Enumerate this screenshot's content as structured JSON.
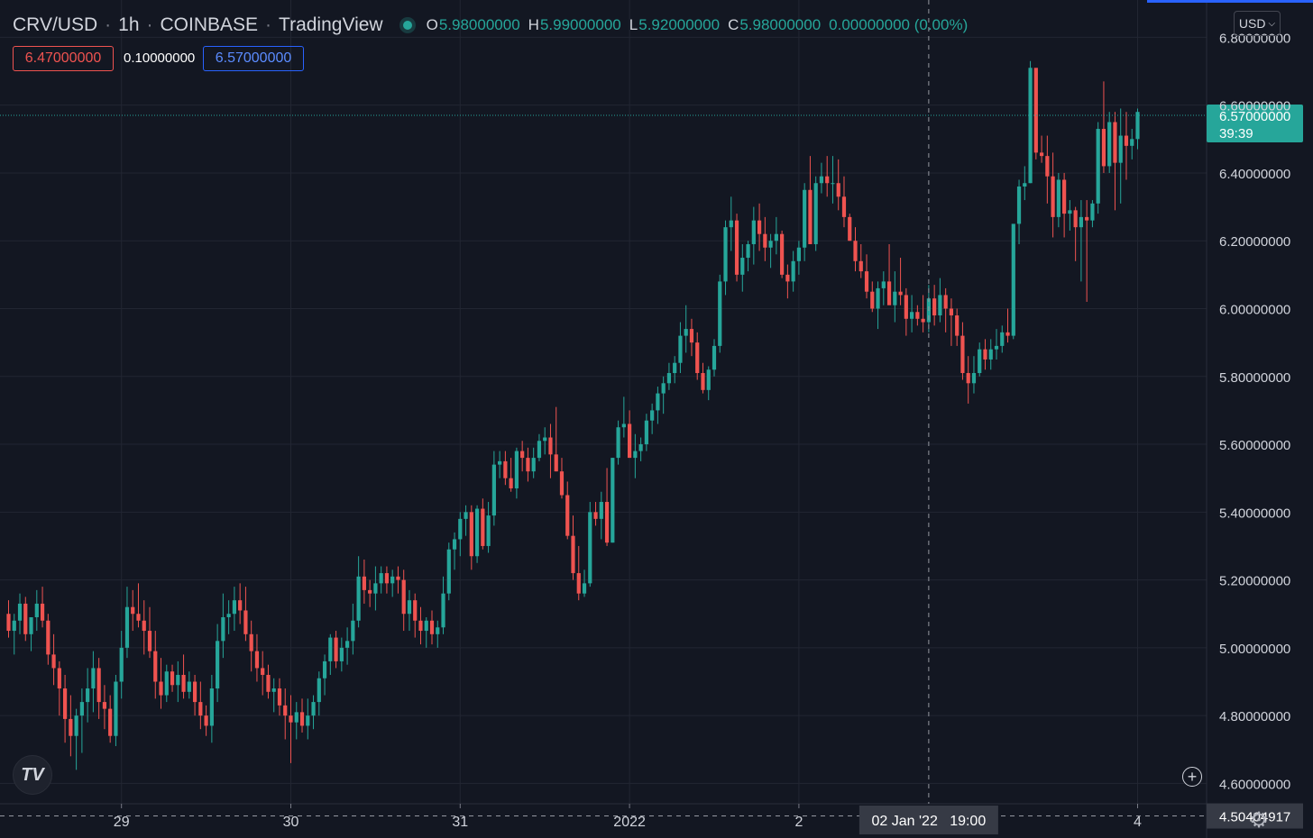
{
  "header": {
    "symbol": "CRV/USD",
    "interval": "1h",
    "exchange": "COINBASE",
    "platform": "TradingView",
    "separator": "·",
    "ohlc": {
      "open_key": "O",
      "open": "5.98000000",
      "high_key": "H",
      "high": "5.99000000",
      "low_key": "L",
      "low": "5.92000000",
      "close_key": "C",
      "close": "5.98000000",
      "change": "0.00000000 (0.00%)"
    }
  },
  "trade_boxes": {
    "sell": "6.47000000",
    "spread": "0.10000000",
    "buy": "6.57000000"
  },
  "currency_button": {
    "label": "USD",
    "icon": "chevron-down-icon"
  },
  "colors": {
    "background": "#131722",
    "up": "#26a69a",
    "down": "#ef5350",
    "grid": "#222632",
    "text": "#d1d4dc",
    "buy_border": "#2962ff",
    "sell_border": "#ef5350"
  },
  "crosshair": {
    "price_label": "4.50404917",
    "time_label": "02 Jan '22   19:00"
  },
  "last_price": {
    "price": "6.57000000",
    "countdown": "39:39"
  },
  "chart_data": {
    "type": "candlestick",
    "timeframe": "1h",
    "y_axis": {
      "range": [
        4.54,
        6.91
      ],
      "ticks": [
        "6.80000000",
        "6.60000000",
        "6.40000000",
        "6.20000000",
        "6.00000000",
        "5.80000000",
        "5.60000000",
        "5.40000000",
        "5.20000000",
        "5.00000000",
        "4.80000000",
        "4.60000000"
      ],
      "tick_values": [
        6.8,
        6.6,
        6.4,
        6.2,
        6.0,
        5.8,
        5.6,
        5.4,
        5.2,
        5.0,
        4.8,
        4.6
      ]
    },
    "x_axis": {
      "ticks": [
        "29",
        "30",
        "31",
        "2022",
        "2",
        "4"
      ],
      "tick_candle_index": [
        20,
        50,
        80,
        110,
        140,
        200
      ]
    },
    "grid": true,
    "crosshair_candle_index": 163,
    "crosshair_price": 4.50404917,
    "last_price": 6.57,
    "candles": [
      [
        5.1,
        5.14,
        5.03,
        5.05
      ],
      [
        5.05,
        5.1,
        4.98,
        5.08
      ],
      [
        5.08,
        5.16,
        5.04,
        5.13
      ],
      [
        5.13,
        5.15,
        5.02,
        5.04
      ],
      [
        5.04,
        5.09,
        4.99,
        5.09
      ],
      [
        5.09,
        5.17,
        5.05,
        5.13
      ],
      [
        5.13,
        5.18,
        5.06,
        5.08
      ],
      [
        5.08,
        5.1,
        4.95,
        4.98
      ],
      [
        4.98,
        5.04,
        4.89,
        4.94
      ],
      [
        4.94,
        4.96,
        4.8,
        4.88
      ],
      [
        4.88,
        4.92,
        4.72,
        4.79
      ],
      [
        4.79,
        4.86,
        4.68,
        4.74
      ],
      [
        4.74,
        4.82,
        4.64,
        4.8
      ],
      [
        4.8,
        4.88,
        4.69,
        4.84
      ],
      [
        4.84,
        4.94,
        4.78,
        4.88
      ],
      [
        4.88,
        4.99,
        4.81,
        4.94
      ],
      [
        4.94,
        4.97,
        4.79,
        4.84
      ],
      [
        4.84,
        4.89,
        4.76,
        4.82
      ],
      [
        4.82,
        4.86,
        4.72,
        4.74
      ],
      [
        4.74,
        4.92,
        4.71,
        4.9
      ],
      [
        4.9,
        5.05,
        4.85,
        5.0
      ],
      [
        5.0,
        5.18,
        4.97,
        5.12
      ],
      [
        5.12,
        5.17,
        5.05,
        5.1
      ],
      [
        5.1,
        5.19,
        5.06,
        5.08
      ],
      [
        5.08,
        5.14,
        4.98,
        5.05
      ],
      [
        5.05,
        5.12,
        4.97,
        4.99
      ],
      [
        4.99,
        5.05,
        4.85,
        4.9
      ],
      [
        4.9,
        4.97,
        4.82,
        4.86
      ],
      [
        4.86,
        4.95,
        4.84,
        4.93
      ],
      [
        4.93,
        4.95,
        4.87,
        4.89
      ],
      [
        4.89,
        4.96,
        4.84,
        4.92
      ],
      [
        4.92,
        4.98,
        4.85,
        4.87
      ],
      [
        4.87,
        4.93,
        4.85,
        4.9
      ],
      [
        4.9,
        4.92,
        4.8,
        4.84
      ],
      [
        4.84,
        4.9,
        4.76,
        4.8
      ],
      [
        4.8,
        4.83,
        4.74,
        4.77
      ],
      [
        4.77,
        4.92,
        4.72,
        4.88
      ],
      [
        4.88,
        5.07,
        4.84,
        5.02
      ],
      [
        5.02,
        5.16,
        4.97,
        5.09
      ],
      [
        5.09,
        5.14,
        5.04,
        5.1
      ],
      [
        5.1,
        5.18,
        5.05,
        5.14
      ],
      [
        5.14,
        5.19,
        5.07,
        5.11
      ],
      [
        5.11,
        5.18,
        5.02,
        5.04
      ],
      [
        5.04,
        5.08,
        4.93,
        4.99
      ],
      [
        4.99,
        5.04,
        4.9,
        4.94
      ],
      [
        4.94,
        4.99,
        4.86,
        4.92
      ],
      [
        4.92,
        4.95,
        4.85,
        4.87
      ],
      [
        4.87,
        4.91,
        4.81,
        4.88
      ],
      [
        4.88,
        4.91,
        4.8,
        4.83
      ],
      [
        4.83,
        4.88,
        4.73,
        4.8
      ],
      [
        4.8,
        4.86,
        4.66,
        4.78
      ],
      [
        4.78,
        4.84,
        4.73,
        4.81
      ],
      [
        4.81,
        4.85,
        4.75,
        4.77
      ],
      [
        4.77,
        4.85,
        4.73,
        4.8
      ],
      [
        4.8,
        4.86,
        4.76,
        4.84
      ],
      [
        4.84,
        4.93,
        4.8,
        4.91
      ],
      [
        4.91,
        4.98,
        4.86,
        4.96
      ],
      [
        4.96,
        5.04,
        4.92,
        5.03
      ],
      [
        5.03,
        5.05,
        4.94,
        4.96
      ],
      [
        4.96,
        5.03,
        4.93,
        5.0
      ],
      [
        5.0,
        5.06,
        4.95,
        5.02
      ],
      [
        5.02,
        5.13,
        4.98,
        5.08
      ],
      [
        5.08,
        5.27,
        5.06,
        5.21
      ],
      [
        5.21,
        5.26,
        5.13,
        5.17
      ],
      [
        5.17,
        5.2,
        5.12,
        5.16
      ],
      [
        5.16,
        5.24,
        5.11,
        5.19
      ],
      [
        5.19,
        5.24,
        5.16,
        5.22
      ],
      [
        5.22,
        5.24,
        5.16,
        5.19
      ],
      [
        5.19,
        5.23,
        5.15,
        5.21
      ],
      [
        5.21,
        5.24,
        5.16,
        5.2
      ],
      [
        5.2,
        5.23,
        5.05,
        5.1
      ],
      [
        5.1,
        5.17,
        5.05,
        5.14
      ],
      [
        5.14,
        5.16,
        5.03,
        5.08
      ],
      [
        5.08,
        5.12,
        5.01,
        5.05
      ],
      [
        5.05,
        5.09,
        5.0,
        5.08
      ],
      [
        5.08,
        5.11,
        5.01,
        5.04
      ],
      [
        5.04,
        5.08,
        5.0,
        5.06
      ],
      [
        5.06,
        5.21,
        5.04,
        5.16
      ],
      [
        5.16,
        5.31,
        5.14,
        5.29
      ],
      [
        5.29,
        5.34,
        5.23,
        5.32
      ],
      [
        5.32,
        5.4,
        5.27,
        5.38
      ],
      [
        5.38,
        5.42,
        5.33,
        5.4
      ],
      [
        5.4,
        5.42,
        5.23,
        5.27
      ],
      [
        5.27,
        5.42,
        5.25,
        5.41
      ],
      [
        5.41,
        5.44,
        5.29,
        5.3
      ],
      [
        5.3,
        5.43,
        5.28,
        5.39
      ],
      [
        5.39,
        5.58,
        5.36,
        5.54
      ],
      [
        5.54,
        5.58,
        5.5,
        5.55
      ],
      [
        5.55,
        5.58,
        5.48,
        5.5
      ],
      [
        5.5,
        5.56,
        5.46,
        5.47
      ],
      [
        5.47,
        5.59,
        5.44,
        5.58
      ],
      [
        5.58,
        5.61,
        5.52,
        5.56
      ],
      [
        5.56,
        5.59,
        5.49,
        5.52
      ],
      [
        5.52,
        5.59,
        5.5,
        5.56
      ],
      [
        5.56,
        5.63,
        5.55,
        5.61
      ],
      [
        5.61,
        5.65,
        5.57,
        5.62
      ],
      [
        5.62,
        5.66,
        5.5,
        5.57
      ],
      [
        5.57,
        5.71,
        5.52,
        5.52
      ],
      [
        5.52,
        5.56,
        5.44,
        5.45
      ],
      [
        5.45,
        5.49,
        5.32,
        5.33
      ],
      [
        5.33,
        5.39,
        5.2,
        5.22
      ],
      [
        5.22,
        5.3,
        5.14,
        5.16
      ],
      [
        5.16,
        5.23,
        5.15,
        5.19
      ],
      [
        5.19,
        5.43,
        5.18,
        5.4
      ],
      [
        5.4,
        5.43,
        5.36,
        5.38
      ],
      [
        5.38,
        5.46,
        5.32,
        5.43
      ],
      [
        5.43,
        5.53,
        5.3,
        5.31
      ],
      [
        5.31,
        5.56,
        5.31,
        5.56
      ],
      [
        5.56,
        5.67,
        5.54,
        5.65
      ],
      [
        5.65,
        5.74,
        5.62,
        5.66
      ],
      [
        5.66,
        5.7,
        5.56,
        5.56
      ],
      [
        5.56,
        5.63,
        5.5,
        5.58
      ],
      [
        5.58,
        5.62,
        5.55,
        5.6
      ],
      [
        5.6,
        5.69,
        5.58,
        5.67
      ],
      [
        5.67,
        5.72,
        5.63,
        5.7
      ],
      [
        5.7,
        5.77,
        5.66,
        5.75
      ],
      [
        5.75,
        5.8,
        5.69,
        5.78
      ],
      [
        5.78,
        5.84,
        5.76,
        5.81
      ],
      [
        5.81,
        5.86,
        5.78,
        5.84
      ],
      [
        5.84,
        5.96,
        5.81,
        5.92
      ],
      [
        5.92,
        6.01,
        5.87,
        5.94
      ],
      [
        5.94,
        5.97,
        5.86,
        5.9
      ],
      [
        5.9,
        5.93,
        5.79,
        5.81
      ],
      [
        5.81,
        5.84,
        5.75,
        5.76
      ],
      [
        5.76,
        5.83,
        5.73,
        5.82
      ],
      [
        5.82,
        5.91,
        5.8,
        5.89
      ],
      [
        5.89,
        6.1,
        5.87,
        6.08
      ],
      [
        6.08,
        6.26,
        6.04,
        6.24
      ],
      [
        6.24,
        6.33,
        6.17,
        6.26
      ],
      [
        6.26,
        6.28,
        6.08,
        6.1
      ],
      [
        6.1,
        6.19,
        6.05,
        6.15
      ],
      [
        6.15,
        6.2,
        6.11,
        6.19
      ],
      [
        6.19,
        6.3,
        6.13,
        6.26
      ],
      [
        6.26,
        6.31,
        6.17,
        6.22
      ],
      [
        6.22,
        6.27,
        6.14,
        6.18
      ],
      [
        6.18,
        6.22,
        6.12,
        6.2
      ],
      [
        6.2,
        6.27,
        6.16,
        6.22
      ],
      [
        6.22,
        6.23,
        6.09,
        6.1
      ],
      [
        6.1,
        6.13,
        6.03,
        6.08
      ],
      [
        6.08,
        6.17,
        6.05,
        6.14
      ],
      [
        6.14,
        6.2,
        6.1,
        6.18
      ],
      [
        6.18,
        6.37,
        6.14,
        6.35
      ],
      [
        6.35,
        6.45,
        6.19,
        6.19
      ],
      [
        6.19,
        6.39,
        6.17,
        6.37
      ],
      [
        6.37,
        6.43,
        6.34,
        6.39
      ],
      [
        6.39,
        6.45,
        6.33,
        6.37
      ],
      [
        6.37,
        6.45,
        6.31,
        6.37
      ],
      [
        6.37,
        6.44,
        6.29,
        6.33
      ],
      [
        6.33,
        6.39,
        6.24,
        6.27
      ],
      [
        6.27,
        6.28,
        6.2,
        6.2
      ],
      [
        6.2,
        6.24,
        6.11,
        6.14
      ],
      [
        6.14,
        6.19,
        6.09,
        6.11
      ],
      [
        6.11,
        6.16,
        6.03,
        6.05
      ],
      [
        6.05,
        6.08,
        5.99,
        6.0
      ],
      [
        6.0,
        6.08,
        5.94,
        6.06
      ],
      [
        6.06,
        6.11,
        6.01,
        6.08
      ],
      [
        6.08,
        6.19,
        6.03,
        6.01
      ],
      [
        6.01,
        6.11,
        5.96,
        6.05
      ],
      [
        6.05,
        6.15,
        6.01,
        6.04
      ],
      [
        6.04,
        6.06,
        5.92,
        5.97
      ],
      [
        5.97,
        6.04,
        5.93,
        5.99
      ],
      [
        5.99,
        6.01,
        5.95,
        5.97
      ],
      [
        5.97,
        6.04,
        5.93,
        5.96
      ],
      [
        5.96,
        6.07,
        5.93,
        6.03
      ],
      [
        6.03,
        6.07,
        5.95,
        5.98
      ],
      [
        5.98,
        6.09,
        5.96,
        6.04
      ],
      [
        6.04,
        6.06,
        5.93,
        6.0
      ],
      [
        6.0,
        6.03,
        5.89,
        5.98
      ],
      [
        5.98,
        6.0,
        5.89,
        5.92
      ],
      [
        5.92,
        5.96,
        5.79,
        5.81
      ],
      [
        5.81,
        5.86,
        5.72,
        5.78
      ],
      [
        5.78,
        5.86,
        5.75,
        5.81
      ],
      [
        5.81,
        5.9,
        5.8,
        5.88
      ],
      [
        5.88,
        5.91,
        5.82,
        5.85
      ],
      [
        5.85,
        5.91,
        5.82,
        5.88
      ],
      [
        5.88,
        5.94,
        5.85,
        5.89
      ],
      [
        5.89,
        5.95,
        5.87,
        5.93
      ],
      [
        5.93,
        6.0,
        5.9,
        5.92
      ],
      [
        5.92,
        6.24,
        5.91,
        6.25
      ],
      [
        6.25,
        6.38,
        6.19,
        6.36
      ],
      [
        6.36,
        6.42,
        6.32,
        6.37
      ],
      [
        6.37,
        6.73,
        6.37,
        6.71
      ],
      [
        6.71,
        6.7,
        6.44,
        6.46
      ],
      [
        6.46,
        6.51,
        6.43,
        6.45
      ],
      [
        6.45,
        6.51,
        6.31,
        6.39
      ],
      [
        6.39,
        6.46,
        6.21,
        6.27
      ],
      [
        6.27,
        6.4,
        6.24,
        6.38
      ],
      [
        6.38,
        6.4,
        6.21,
        6.28
      ],
      [
        6.28,
        6.32,
        6.23,
        6.29
      ],
      [
        6.29,
        6.3,
        6.14,
        6.24
      ],
      [
        6.24,
        6.32,
        6.08,
        6.27
      ],
      [
        6.27,
        6.32,
        6.02,
        6.26
      ],
      [
        6.26,
        6.32,
        6.24,
        6.31
      ],
      [
        6.31,
        6.55,
        6.28,
        6.53
      ],
      [
        6.53,
        6.67,
        6.4,
        6.42
      ],
      [
        6.42,
        6.58,
        6.4,
        6.55
      ],
      [
        6.55,
        6.58,
        6.29,
        6.43
      ],
      [
        6.43,
        6.59,
        6.31,
        6.51
      ],
      [
        6.51,
        6.58,
        6.38,
        6.48
      ],
      [
        6.48,
        6.53,
        6.44,
        6.5
      ],
      [
        6.5,
        6.59,
        6.47,
        6.58
      ]
    ]
  }
}
